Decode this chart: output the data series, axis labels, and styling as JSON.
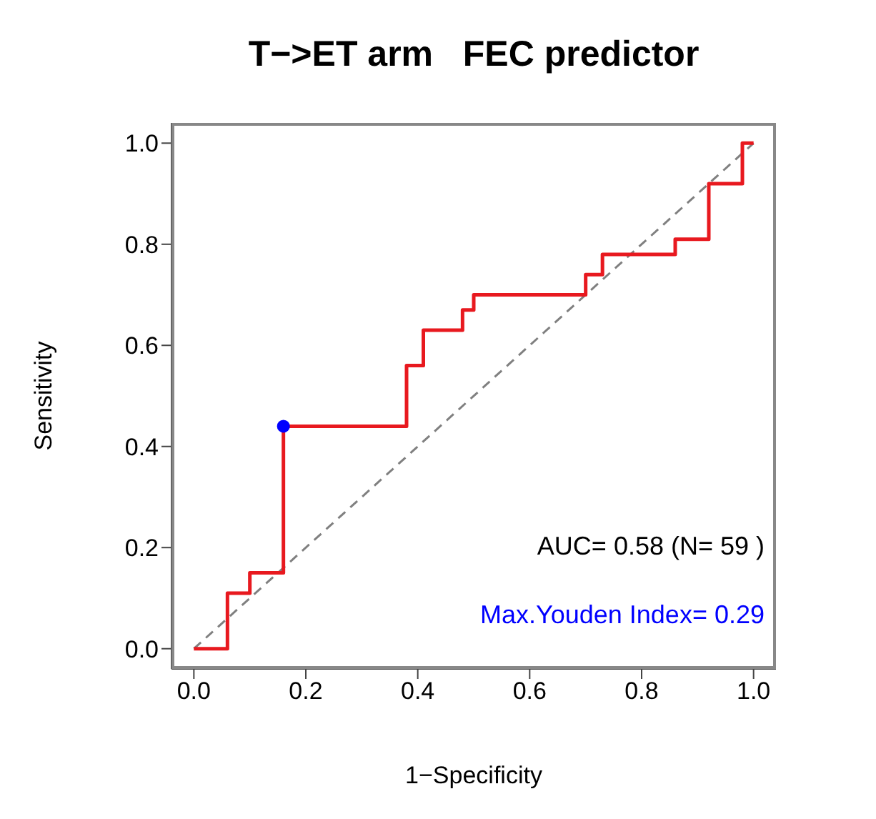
{
  "chart_data": {
    "type": "step",
    "title": "T−>ET arm   FEC predictor",
    "xlabel": "1−Specificity",
    "ylabel": "Sensitivity",
    "xlim": [
      -0.04,
      1.04
    ],
    "ylim": [
      -0.04,
      1.04
    ],
    "xticks": [
      {
        "value": 0,
        "label": "0.0"
      },
      0.2,
      0.4,
      0.6,
      0.8,
      {
        "value": 1,
        "label": "1.0"
      }
    ],
    "yticks": [
      {
        "value": 0,
        "label": "0.0"
      },
      0.2,
      0.4,
      0.6,
      0.8,
      {
        "value": 1,
        "label": "1.0"
      }
    ],
    "series": [
      {
        "type": "line",
        "color": "#808080",
        "line_style": "dashed",
        "marker": "none",
        "x": [
          0,
          1
        ],
        "values": [
          0,
          1
        ]
      },
      {
        "color": "#e8191f",
        "marker": "none",
        "x": [
          0,
          0.06,
          0.1,
          0.16,
          0.38,
          0.41,
          0.48,
          0.5,
          0.7,
          0.73,
          0.86,
          0.92,
          0.98,
          1.0
        ],
        "values": [
          0,
          0.11,
          0.15,
          0.44,
          0.56,
          0.63,
          0.67,
          0.7,
          0.74,
          0.78,
          0.81,
          0.92,
          1.0,
          1.0
        ]
      },
      {
        "type": "scatter",
        "color": "#0000ff",
        "marker": "circle",
        "x": [
          0.16
        ],
        "values": [
          0.44
        ]
      }
    ],
    "annotations": [
      "AUC= 0.58 (N= 59 )",
      "Max.Youden Index= 0.29"
    ]
  }
}
